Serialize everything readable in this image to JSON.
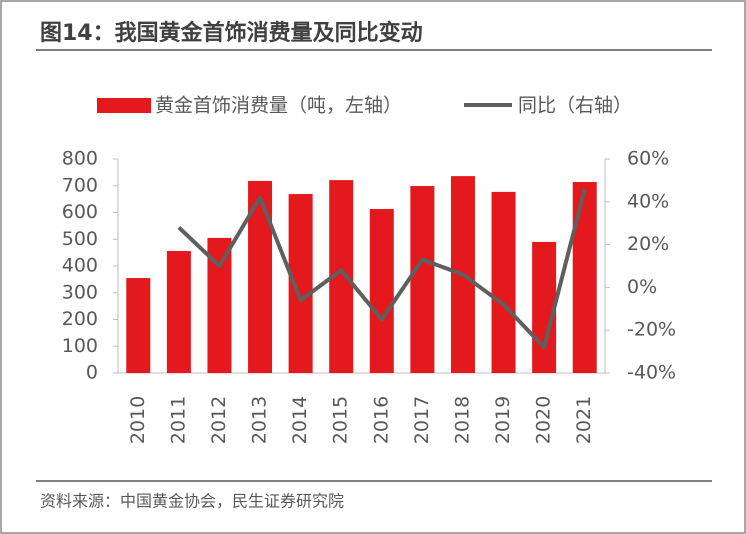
{
  "chart_data": {
    "type": "bar",
    "title": "图14：我国黄金首饰消费量及同比变动",
    "source": "资料来源：中国黄金协会，民生证券研究院",
    "categories": [
      "2010",
      "2011",
      "2012",
      "2013",
      "2014",
      "2015",
      "2016",
      "2017",
      "2018",
      "2019",
      "2020",
      "2021"
    ],
    "series": [
      {
        "name": "黄金首饰消费量（吨，左轴）",
        "type": "bar",
        "color": "#e3191e",
        "axis": "y",
        "values": [
          355,
          456,
          505,
          718,
          669,
          721,
          613,
          699,
          736,
          677,
          490,
          714
        ]
      },
      {
        "name": "同比（右轴）",
        "type": "line",
        "color": "#5f5f5f",
        "axis": "y2",
        "values": [
          null,
          28,
          10,
          42,
          -6,
          8,
          -15,
          13,
          6,
          -8,
          -28,
          46
        ]
      }
    ],
    "ylim": [
      0,
      800
    ],
    "yticks": [
      0,
      100,
      200,
      300,
      400,
      500,
      600,
      700,
      800
    ],
    "y2lim": [
      -40,
      60
    ],
    "y2ticks": [
      {
        "value": -40,
        "label": "-40%"
      },
      {
        "value": -20,
        "label": "-20%"
      },
      {
        "value": 0,
        "label": "0%"
      },
      {
        "value": 20,
        "label": "20%"
      },
      {
        "value": 40,
        "label": "40%"
      },
      {
        "value": 60,
        "label": "60%"
      }
    ],
    "grid": false
  }
}
